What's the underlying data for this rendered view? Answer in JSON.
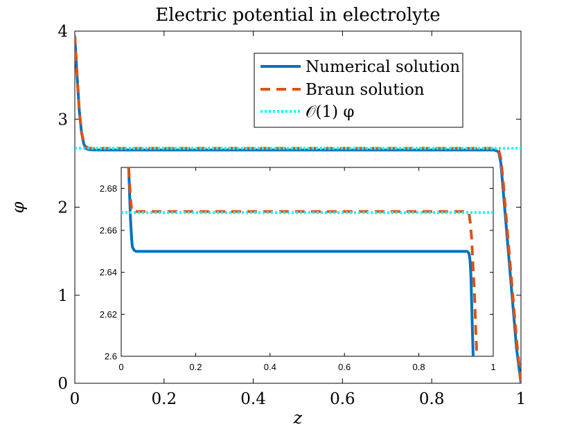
{
  "chart_data": [
    {
      "type": "line",
      "title": "Electric potential in electrolyte",
      "xlabel": "z",
      "ylabel": "φ",
      "xlim": [
        0,
        1
      ],
      "ylim": [
        0,
        4
      ],
      "xticks": [
        "0",
        "0.2",
        "0.4",
        "0.6",
        "0.8",
        "1"
      ],
      "yticks": [
        "0",
        "1",
        "2",
        "3",
        "4"
      ],
      "grid": false,
      "legend_position": "top-right",
      "series": [
        {
          "name": "Numerical solution",
          "color": "#0072BD",
          "style": "solid",
          "x": [
            0,
            0.005,
            0.01,
            0.015,
            0.02,
            0.025,
            0.03,
            0.04,
            0.06,
            0.1,
            0.3,
            0.5,
            0.7,
            0.9,
            0.94,
            0.95,
            0.955,
            0.96,
            0.97,
            0.98,
            0.99,
            1.0
          ],
          "y": [
            3.93,
            3.5,
            3.1,
            2.85,
            2.72,
            2.67,
            2.655,
            2.651,
            2.65,
            2.65,
            2.65,
            2.65,
            2.65,
            2.65,
            2.65,
            2.63,
            2.5,
            2.2,
            1.6,
            1.0,
            0.4,
            0.0
          ]
        },
        {
          "name": "Braun solution",
          "color": "#D95319",
          "style": "dashed",
          "x": [
            0,
            0.005,
            0.01,
            0.015,
            0.02,
            0.025,
            0.03,
            0.04,
            0.1,
            0.5,
            0.9,
            0.94,
            0.95,
            0.955,
            0.96,
            0.97,
            0.98,
            0.99,
            1.0
          ],
          "y": [
            3.95,
            3.5,
            3.1,
            2.85,
            2.74,
            2.69,
            2.671,
            2.669,
            2.669,
            2.669,
            2.669,
            2.669,
            2.65,
            2.55,
            2.3,
            1.7,
            1.1,
            0.5,
            0.0
          ]
        },
        {
          "name": "𝒪(1) φ",
          "color": "#00FFFF",
          "style": "dotted",
          "x": [
            0,
            1
          ],
          "y": [
            2.669,
            2.669
          ]
        }
      ]
    },
    {
      "type": "line",
      "title": "",
      "xlabel": "",
      "ylabel": "",
      "xlim": [
        0,
        1
      ],
      "ylim": [
        2.6,
        2.69
      ],
      "xticks": [
        "0",
        "0.2",
        "0.4",
        "0.6",
        "0.8",
        "1"
      ],
      "yticks": [
        "2.6",
        "2.62",
        "2.64",
        "2.66",
        "2.68"
      ],
      "grid": false,
      "series": [
        {
          "color": "#0072BD",
          "style": "solid",
          "x": [
            0.02,
            0.023,
            0.025,
            0.028,
            0.03,
            0.035,
            0.04,
            0.06,
            0.1,
            0.3,
            0.5,
            0.7,
            0.9,
            0.93,
            0.935,
            0.938,
            0.94,
            0.942,
            0.944,
            0.946
          ],
          "y": [
            2.69,
            2.675,
            2.665,
            2.656,
            2.652,
            2.6505,
            2.65,
            2.65,
            2.65,
            2.65,
            2.65,
            2.65,
            2.65,
            2.65,
            2.649,
            2.645,
            2.638,
            2.625,
            2.612,
            2.6
          ]
        },
        {
          "color": "#D95319",
          "style": "dashed",
          "x": [
            0.02,
            0.022,
            0.024,
            0.026,
            0.028,
            0.03,
            0.05,
            0.1,
            0.5,
            0.9,
            0.93,
            0.935,
            0.938,
            0.942,
            0.946,
            0.95,
            0.953,
            0.956
          ],
          "y": [
            2.69,
            2.684,
            2.678,
            2.673,
            2.6695,
            2.669,
            2.669,
            2.669,
            2.669,
            2.669,
            2.669,
            2.668,
            2.664,
            2.656,
            2.642,
            2.628,
            2.612,
            2.6
          ]
        },
        {
          "color": "#00FFFF",
          "style": "dotted",
          "x": [
            0,
            1
          ],
          "y": [
            2.6685,
            2.6685
          ]
        }
      ]
    }
  ]
}
